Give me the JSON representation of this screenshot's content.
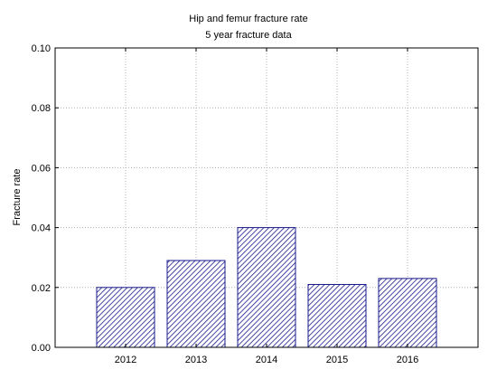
{
  "chart_data": {
    "type": "bar",
    "title": "Hip and femur fracture rate",
    "subtitle": "5 year fracture data",
    "xlabel": "",
    "ylabel": "Fracture rate",
    "categories": [
      "2012",
      "2013",
      "2014",
      "2015",
      "2016"
    ],
    "values": [
      0.02,
      0.029,
      0.04,
      0.021,
      0.023
    ],
    "ylim": [
      0,
      0.1
    ],
    "yticks": [
      0.0,
      0.02,
      0.04,
      0.06,
      0.08,
      0.1
    ],
    "ytick_labels": [
      "0.00",
      "0.02",
      "0.04",
      "0.06",
      "0.08",
      "0.10"
    ],
    "grid": true,
    "bar_fill": "hatched",
    "bar_color": "#1a1a8c",
    "grid_color": "#b0b0b0",
    "legend": "none"
  }
}
